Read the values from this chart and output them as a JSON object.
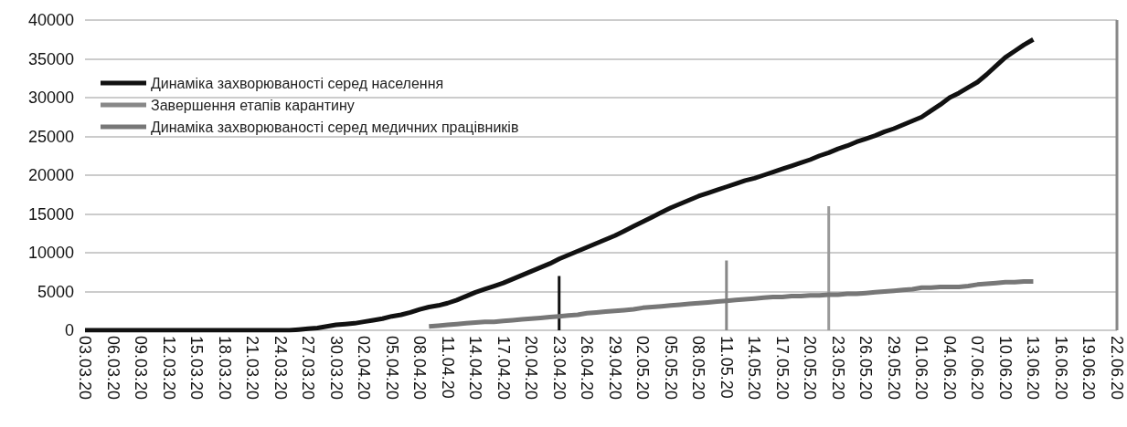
{
  "chart_data": {
    "type": "line",
    "x": [
      "--03-03",
      "--03-04",
      "--03-05",
      "--03-06",
      "--03-07",
      "--03-08",
      "--03-09",
      "--03-10",
      "--03-11",
      "--03-12",
      "--03-13",
      "--03-14",
      "--03-15",
      "--03-16",
      "--03-17",
      "--03-18",
      "--03-19",
      "--03-20",
      "--03-21",
      "--03-22",
      "--03-23",
      "--03-24",
      "--03-25",
      "--03-26",
      "--03-27",
      "--03-28",
      "--03-29",
      "--03-30",
      "--03-31",
      "--04-01",
      "--04-02",
      "--04-03",
      "--04-04",
      "--04-05",
      "--04-06",
      "--04-07",
      "--04-08",
      "--04-09",
      "--04-10",
      "--04-11",
      "--04-12",
      "--04-13",
      "--04-14",
      "--04-15",
      "--04-16",
      "--04-17",
      "--04-18",
      "--04-19",
      "--04-20",
      "--04-21",
      "--04-22",
      "--04-23",
      "--04-24",
      "--04-25",
      "--04-26",
      "--04-27",
      "--04-28",
      "--04-29",
      "--04-30",
      "--05-01",
      "--05-02",
      "--05-03",
      "--05-04",
      "--05-05",
      "--05-06",
      "--05-07",
      "--05-08",
      "--05-09",
      "--05-10",
      "--05-11",
      "--05-12",
      "--05-13",
      "--05-14",
      "--05-15",
      "--05-16",
      "--05-17",
      "--05-18",
      "--05-19",
      "--05-20",
      "--05-21",
      "--05-22",
      "--05-23",
      "--05-24",
      "--05-25",
      "--05-26",
      "--05-27",
      "--05-28",
      "--05-29",
      "--05-30",
      "--05-31",
      "--06-01",
      "--06-02",
      "--06-03",
      "--06-04",
      "--06-05",
      "--06-06",
      "--06-07",
      "--06-08",
      "--06-09",
      "--06-10",
      "--06-11",
      "--06-12",
      "--06-13"
    ],
    "series": [
      {
        "name": "Динаміка захворюваності серед населення",
        "color": "#111111",
        "values": [
          0,
          0,
          0,
          0,
          0,
          0,
          0,
          0,
          0,
          0,
          0,
          0,
          0,
          0,
          0,
          0,
          0,
          0,
          0,
          0,
          0,
          0,
          0,
          100,
          200,
          300,
          500,
          700,
          800,
          900,
          1100,
          1300,
          1500,
          1800,
          2000,
          2300,
          2700,
          3000,
          3200,
          3500,
          3900,
          4400,
          4900,
          5300,
          5700,
          6100,
          6600,
          7100,
          7600,
          8100,
          8600,
          9200,
          9700,
          10200,
          10700,
          11200,
          11700,
          12200,
          12800,
          13400,
          14000,
          14600,
          15200,
          15800,
          16300,
          16800,
          17300,
          17700,
          18100,
          18500,
          18900,
          19300,
          19600,
          20000,
          20400,
          20800,
          21200,
          21600,
          22000,
          22500,
          22900,
          23400,
          23800,
          24300,
          24700,
          25100,
          25600,
          26000,
          26500,
          27000,
          27500,
          28300,
          29100,
          30000,
          30600,
          31300,
          32000,
          33000,
          34100,
          35200,
          36000,
          36800,
          37500
        ]
      },
      {
        "name": "Завершення етапів карантину",
        "type": "bar",
        "color": "#888888",
        "x": [
          "--04-23",
          "--05-11",
          "--05-22",
          "--06-22"
        ],
        "values": [
          7000,
          9000,
          16000,
          40000
        ],
        "colors": [
          "#111111",
          "#888888",
          "#999999",
          "#888888"
        ]
      },
      {
        "name": "Динаміка захворюваності серед медичних працівників",
        "color": "#777777",
        "values": [
          null,
          null,
          null,
          null,
          null,
          null,
          null,
          null,
          null,
          null,
          null,
          null,
          null,
          null,
          null,
          null,
          null,
          null,
          null,
          null,
          null,
          null,
          null,
          null,
          null,
          null,
          null,
          null,
          null,
          null,
          null,
          null,
          null,
          null,
          null,
          null,
          null,
          500,
          600,
          700,
          800,
          900,
          1000,
          1100,
          1100,
          1200,
          1300,
          1400,
          1500,
          1600,
          1700,
          1800,
          1900,
          2000,
          2200,
          2300,
          2400,
          2500,
          2600,
          2700,
          2900,
          3000,
          3100,
          3200,
          3300,
          3400,
          3500,
          3600,
          3700,
          3800,
          3900,
          4000,
          4100,
          4200,
          4300,
          4300,
          4400,
          4400,
          4500,
          4500,
          4600,
          4600,
          4700,
          4700,
          4800,
          4900,
          5000,
          5100,
          5200,
          5300,
          5500,
          5500,
          5600,
          5600,
          5600,
          5700,
          5900,
          6000,
          6100,
          6200,
          6200,
          6300,
          6300
        ]
      }
    ],
    "xlim": [
      "--03-03",
      "--06-22"
    ],
    "xticks": [
      {
        "value": "--03-03",
        "label": "03.03.20"
      },
      {
        "value": "--03-06",
        "label": "06.03.20"
      },
      {
        "value": "--03-09",
        "label": "09.03.20"
      },
      {
        "value": "--03-12",
        "label": "12.03.20"
      },
      {
        "value": "--03-15",
        "label": "15.03.20"
      },
      {
        "value": "--03-18",
        "label": "18.03.20"
      },
      {
        "value": "--03-21",
        "label": "21.03.20"
      },
      {
        "value": "--03-24",
        "label": "24.03.20"
      },
      {
        "value": "--03-27",
        "label": "27.03.20"
      },
      {
        "value": "--03-30",
        "label": "30.03.20"
      },
      {
        "value": "--04-02",
        "label": "02.04.20"
      },
      {
        "value": "--04-05",
        "label": "05.04.20"
      },
      {
        "value": "--04-08",
        "label": "08.04.20"
      },
      {
        "value": "--04-11",
        "label": "11.04.20"
      },
      {
        "value": "--04-14",
        "label": "14.04.20"
      },
      {
        "value": "--04-17",
        "label": "17.04.20"
      },
      {
        "value": "--04-20",
        "label": "20.04.20"
      },
      {
        "value": "--04-23",
        "label": "23.04.20"
      },
      {
        "value": "--04-26",
        "label": "26.04.20"
      },
      {
        "value": "--04-29",
        "label": "29.04.20"
      },
      {
        "value": "--05-02",
        "label": "02.05.20"
      },
      {
        "value": "--05-05",
        "label": "05.05.20"
      },
      {
        "value": "--05-08",
        "label": "08.05.20"
      },
      {
        "value": "--05-11",
        "label": "11.05.20"
      },
      {
        "value": "--05-14",
        "label": "14.05.20"
      },
      {
        "value": "--05-17",
        "label": "17.05.20"
      },
      {
        "value": "--05-20",
        "label": "20.05.20"
      },
      {
        "value": "--05-23",
        "label": "23.05.20"
      },
      {
        "value": "--05-26",
        "label": "26.05.20"
      },
      {
        "value": "--05-29",
        "label": "29.05.20"
      },
      {
        "value": "--06-01",
        "label": "01.06.20"
      },
      {
        "value": "--06-04",
        "label": "04.06.20"
      },
      {
        "value": "--06-07",
        "label": "07.06.20"
      },
      {
        "value": "--06-10",
        "label": "10.06.20"
      },
      {
        "value": "--06-13",
        "label": "13.06.20"
      },
      {
        "value": "--06-16",
        "label": "16.06.20"
      },
      {
        "value": "--06-19",
        "label": "19.06.20"
      },
      {
        "value": "--06-22",
        "label": "22.06.20"
      }
    ],
    "ylim": [
      0,
      40000
    ],
    "yticks": [
      0,
      5000,
      10000,
      15000,
      20000,
      25000,
      30000,
      35000,
      40000
    ],
    "grid": "y",
    "legend": "top left"
  }
}
